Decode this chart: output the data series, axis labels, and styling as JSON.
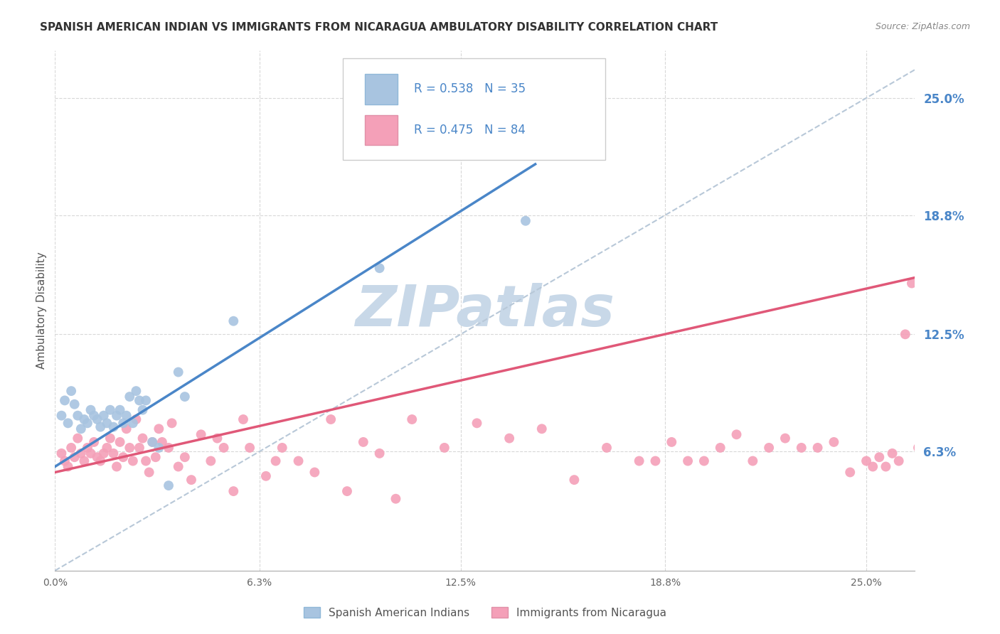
{
  "title": "SPANISH AMERICAN INDIAN VS IMMIGRANTS FROM NICARAGUA AMBULATORY DISABILITY CORRELATION CHART",
  "source": "Source: ZipAtlas.com",
  "ylabel": "Ambulatory Disability",
  "ytick_labels": [
    "6.3%",
    "12.5%",
    "18.8%",
    "25.0%"
  ],
  "ytick_values": [
    0.063,
    0.125,
    0.188,
    0.25
  ],
  "xtick_labels": [
    "0.0%",
    "6.3%",
    "12.5%",
    "18.8%",
    "25.0%"
  ],
  "xtick_values": [
    0.0,
    0.063,
    0.125,
    0.188,
    0.25
  ],
  "xlim": [
    0.0,
    0.265
  ],
  "ylim": [
    0.0,
    0.275
  ],
  "legend1_label": "R = 0.538   N = 35",
  "legend2_label": "R = 0.475   N = 84",
  "series1_color": "#a8c4e0",
  "series2_color": "#f4a0b8",
  "trendline1_color": "#4a86c8",
  "trendline2_color": "#e05878",
  "diagonal_color": "#b8c8d8",
  "watermark": "ZIPatlas",
  "watermark_color": "#c8d8e8",
  "series1_name": "Spanish American Indians",
  "series2_name": "Immigrants from Nicaragua",
  "background_color": "#ffffff",
  "grid_color": "#d8d8d8",
  "series1_x": [
    0.002,
    0.003,
    0.004,
    0.005,
    0.006,
    0.007,
    0.008,
    0.009,
    0.01,
    0.011,
    0.012,
    0.013,
    0.014,
    0.015,
    0.016,
    0.017,
    0.018,
    0.019,
    0.02,
    0.021,
    0.022,
    0.023,
    0.024,
    0.025,
    0.026,
    0.027,
    0.028,
    0.03,
    0.032,
    0.035,
    0.038,
    0.04,
    0.055,
    0.1,
    0.145
  ],
  "series1_y": [
    0.082,
    0.09,
    0.078,
    0.095,
    0.088,
    0.082,
    0.075,
    0.08,
    0.078,
    0.085,
    0.082,
    0.08,
    0.076,
    0.082,
    0.078,
    0.085,
    0.076,
    0.082,
    0.085,
    0.078,
    0.082,
    0.092,
    0.078,
    0.095,
    0.09,
    0.085,
    0.09,
    0.068,
    0.065,
    0.045,
    0.105,
    0.092,
    0.132,
    0.16,
    0.185
  ],
  "series2_x": [
    0.002,
    0.003,
    0.004,
    0.005,
    0.006,
    0.007,
    0.008,
    0.009,
    0.01,
    0.011,
    0.012,
    0.013,
    0.014,
    0.015,
    0.016,
    0.017,
    0.018,
    0.019,
    0.02,
    0.021,
    0.022,
    0.023,
    0.024,
    0.025,
    0.026,
    0.027,
    0.028,
    0.029,
    0.03,
    0.031,
    0.032,
    0.033,
    0.035,
    0.036,
    0.038,
    0.04,
    0.042,
    0.045,
    0.048,
    0.05,
    0.052,
    0.055,
    0.058,
    0.06,
    0.065,
    0.068,
    0.07,
    0.075,
    0.08,
    0.085,
    0.09,
    0.095,
    0.1,
    0.105,
    0.11,
    0.12,
    0.13,
    0.14,
    0.15,
    0.16,
    0.17,
    0.18,
    0.185,
    0.19,
    0.195,
    0.2,
    0.205,
    0.21,
    0.215,
    0.22,
    0.225,
    0.23,
    0.235,
    0.24,
    0.245,
    0.25,
    0.252,
    0.254,
    0.256,
    0.258,
    0.26,
    0.262,
    0.264,
    0.266
  ],
  "series2_y": [
    0.062,
    0.058,
    0.055,
    0.065,
    0.06,
    0.07,
    0.062,
    0.058,
    0.065,
    0.062,
    0.068,
    0.06,
    0.058,
    0.062,
    0.065,
    0.07,
    0.062,
    0.055,
    0.068,
    0.06,
    0.075,
    0.065,
    0.058,
    0.08,
    0.065,
    0.07,
    0.058,
    0.052,
    0.068,
    0.06,
    0.075,
    0.068,
    0.065,
    0.078,
    0.055,
    0.06,
    0.048,
    0.072,
    0.058,
    0.07,
    0.065,
    0.042,
    0.08,
    0.065,
    0.05,
    0.058,
    0.065,
    0.058,
    0.052,
    0.08,
    0.042,
    0.068,
    0.062,
    0.038,
    0.08,
    0.065,
    0.078,
    0.07,
    0.075,
    0.048,
    0.065,
    0.058,
    0.058,
    0.068,
    0.058,
    0.058,
    0.065,
    0.072,
    0.058,
    0.065,
    0.07,
    0.065,
    0.065,
    0.068,
    0.052,
    0.058,
    0.055,
    0.06,
    0.055,
    0.062,
    0.058,
    0.125,
    0.152,
    0.065
  ],
  "trendline1_x0": 0.0,
  "trendline1_x1": 0.148,
  "trendline1_y0": 0.055,
  "trendline1_y1": 0.215,
  "trendline2_x0": 0.0,
  "trendline2_x1": 0.265,
  "trendline2_y0": 0.052,
  "trendline2_y1": 0.155
}
